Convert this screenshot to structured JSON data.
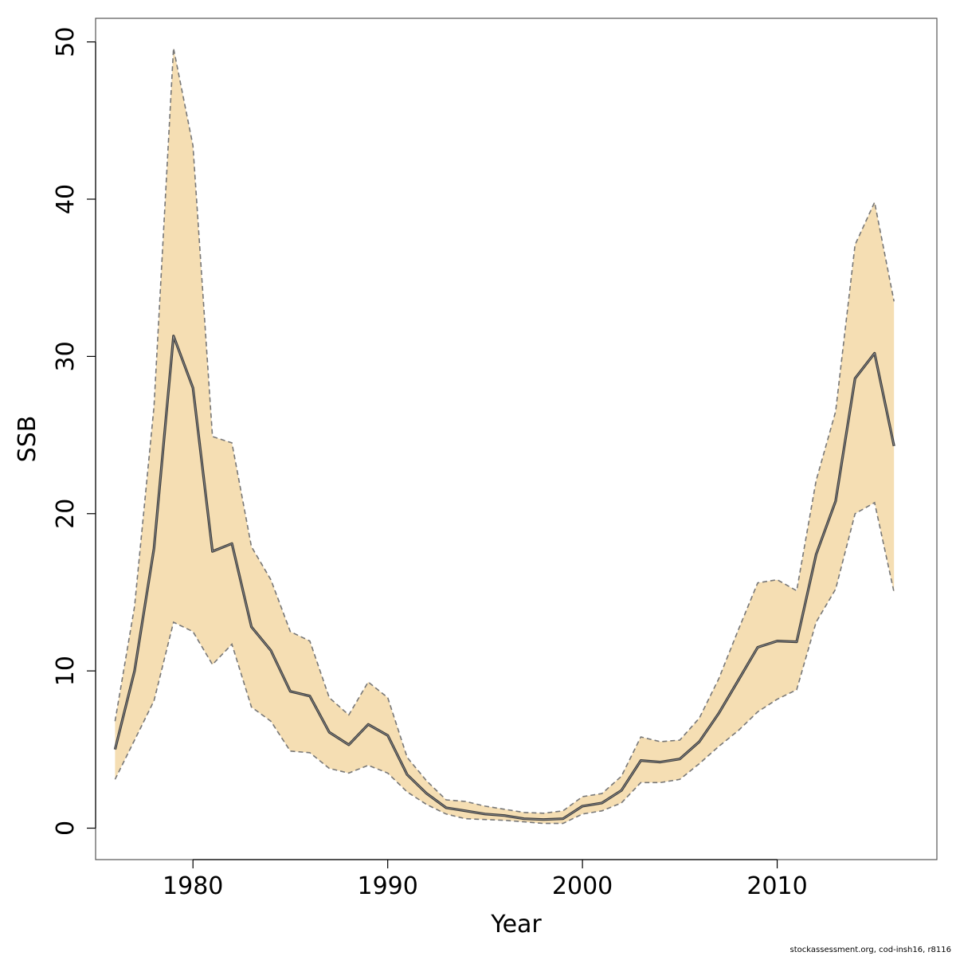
{
  "chart_data": {
    "type": "area",
    "xlabel": "Year",
    "ylabel": "SSB",
    "xlim": [
      1975,
      2018.2
    ],
    "ylim": [
      -2,
      51.5
    ],
    "x_ticks": [
      1980,
      1990,
      2000,
      2010
    ],
    "y_ticks": [
      0,
      10,
      20,
      30,
      40,
      50
    ],
    "grid": false,
    "band_color": "#f5deb3",
    "line_color": "#3a3a3a",
    "bound_color": "#777777",
    "series": [
      {
        "role": "estimate",
        "x": [
          1976,
          1977,
          1978,
          1979,
          1980,
          1981,
          1982,
          1983,
          1984,
          1985,
          1986,
          1987,
          1988,
          1989,
          1990,
          1991,
          1992,
          1993,
          1994,
          1995,
          1996,
          1997,
          1998,
          1999,
          2000,
          2001,
          2002,
          2003,
          2004,
          2005,
          2006,
          2007,
          2008,
          2009,
          2010,
          2011,
          2012,
          2013,
          2014,
          2015,
          2016
        ],
        "values": [
          5.0,
          10.0,
          17.8,
          31.3,
          28.0,
          17.6,
          18.1,
          12.8,
          11.3,
          8.7,
          8.4,
          6.1,
          5.3,
          6.6,
          5.9,
          3.4,
          2.2,
          1.3,
          1.1,
          0.9,
          0.8,
          0.6,
          0.55,
          0.6,
          1.4,
          1.6,
          2.4,
          4.3,
          4.2,
          4.4,
          5.5,
          7.3,
          9.4,
          11.5,
          11.9,
          11.85,
          17.4,
          20.8,
          28.6,
          30.2,
          24.3
        ]
      },
      {
        "role": "upper",
        "x": [
          1976,
          1977,
          1978,
          1979,
          1980,
          1981,
          1982,
          1983,
          1984,
          1985,
          1986,
          1987,
          1988,
          1989,
          1990,
          1991,
          1992,
          1993,
          1994,
          1995,
          1996,
          1997,
          1998,
          1999,
          2000,
          2001,
          2002,
          2003,
          2004,
          2005,
          2006,
          2007,
          2008,
          2009,
          2010,
          2011,
          2012,
          2013,
          2014,
          2015,
          2016
        ],
        "values": [
          6.8,
          14.1,
          26.8,
          49.6,
          43.4,
          24.9,
          24.5,
          17.9,
          15.8,
          12.5,
          11.9,
          8.3,
          7.2,
          9.3,
          8.3,
          4.5,
          3.0,
          1.8,
          1.7,
          1.4,
          1.2,
          1.0,
          0.95,
          1.1,
          2.0,
          2.2,
          3.3,
          5.8,
          5.5,
          5.6,
          7.0,
          9.5,
          12.6,
          15.6,
          15.8,
          15.1,
          22.1,
          26.5,
          37.1,
          39.8,
          33.5
        ]
      },
      {
        "role": "lower",
        "x": [
          1976,
          1977,
          1978,
          1979,
          1980,
          1981,
          1982,
          1983,
          1984,
          1985,
          1986,
          1987,
          1988,
          1989,
          1990,
          1991,
          1992,
          1993,
          1994,
          1995,
          1996,
          1997,
          1998,
          1999,
          2000,
          2001,
          2002,
          2003,
          2004,
          2005,
          2006,
          2007,
          2008,
          2009,
          2010,
          2011,
          2012,
          2013,
          2014,
          2015,
          2016
        ],
        "values": [
          3.1,
          5.6,
          8.1,
          13.1,
          12.5,
          10.4,
          11.7,
          7.7,
          6.8,
          4.9,
          4.8,
          3.8,
          3.5,
          4.0,
          3.5,
          2.3,
          1.5,
          0.9,
          0.6,
          0.55,
          0.5,
          0.4,
          0.3,
          0.3,
          0.9,
          1.1,
          1.6,
          2.9,
          2.9,
          3.1,
          4.1,
          5.2,
          6.2,
          7.4,
          8.2,
          8.8,
          13.1,
          15.2,
          20.0,
          20.7,
          15.0
        ]
      }
    ]
  },
  "footer": {
    "credit": "stockassessment.org, cod-insh16, r8116"
  }
}
